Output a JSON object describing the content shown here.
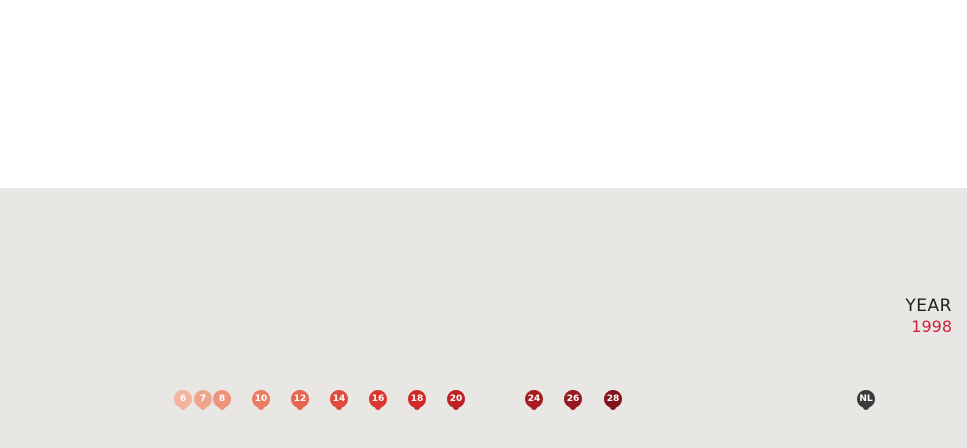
{
  "year": {
    "label": "YEAR",
    "value": "1998"
  },
  "markers": [
    {
      "label": "6",
      "color": "#f2b4a1"
    },
    {
      "label": "7",
      "color": "#f0a58e"
    },
    {
      "label": "8",
      "color": "#ed947b"
    },
    {
      "label": "10",
      "color": "#ea7d63"
    },
    {
      "label": "12",
      "color": "#e6654f"
    },
    {
      "label": "14",
      "color": "#e04a3a"
    },
    {
      "label": "16",
      "color": "#db3630"
    },
    {
      "label": "18",
      "color": "#d12a27"
    },
    {
      "label": "20",
      "color": "#bf2125"
    },
    {
      "label": "24",
      "color": "#a91c22"
    },
    {
      "label": "26",
      "color": "#96191f"
    },
    {
      "label": "28",
      "color": "#82151b"
    },
    {
      "label": "NL",
      "color": "#3b3b3b"
    }
  ]
}
